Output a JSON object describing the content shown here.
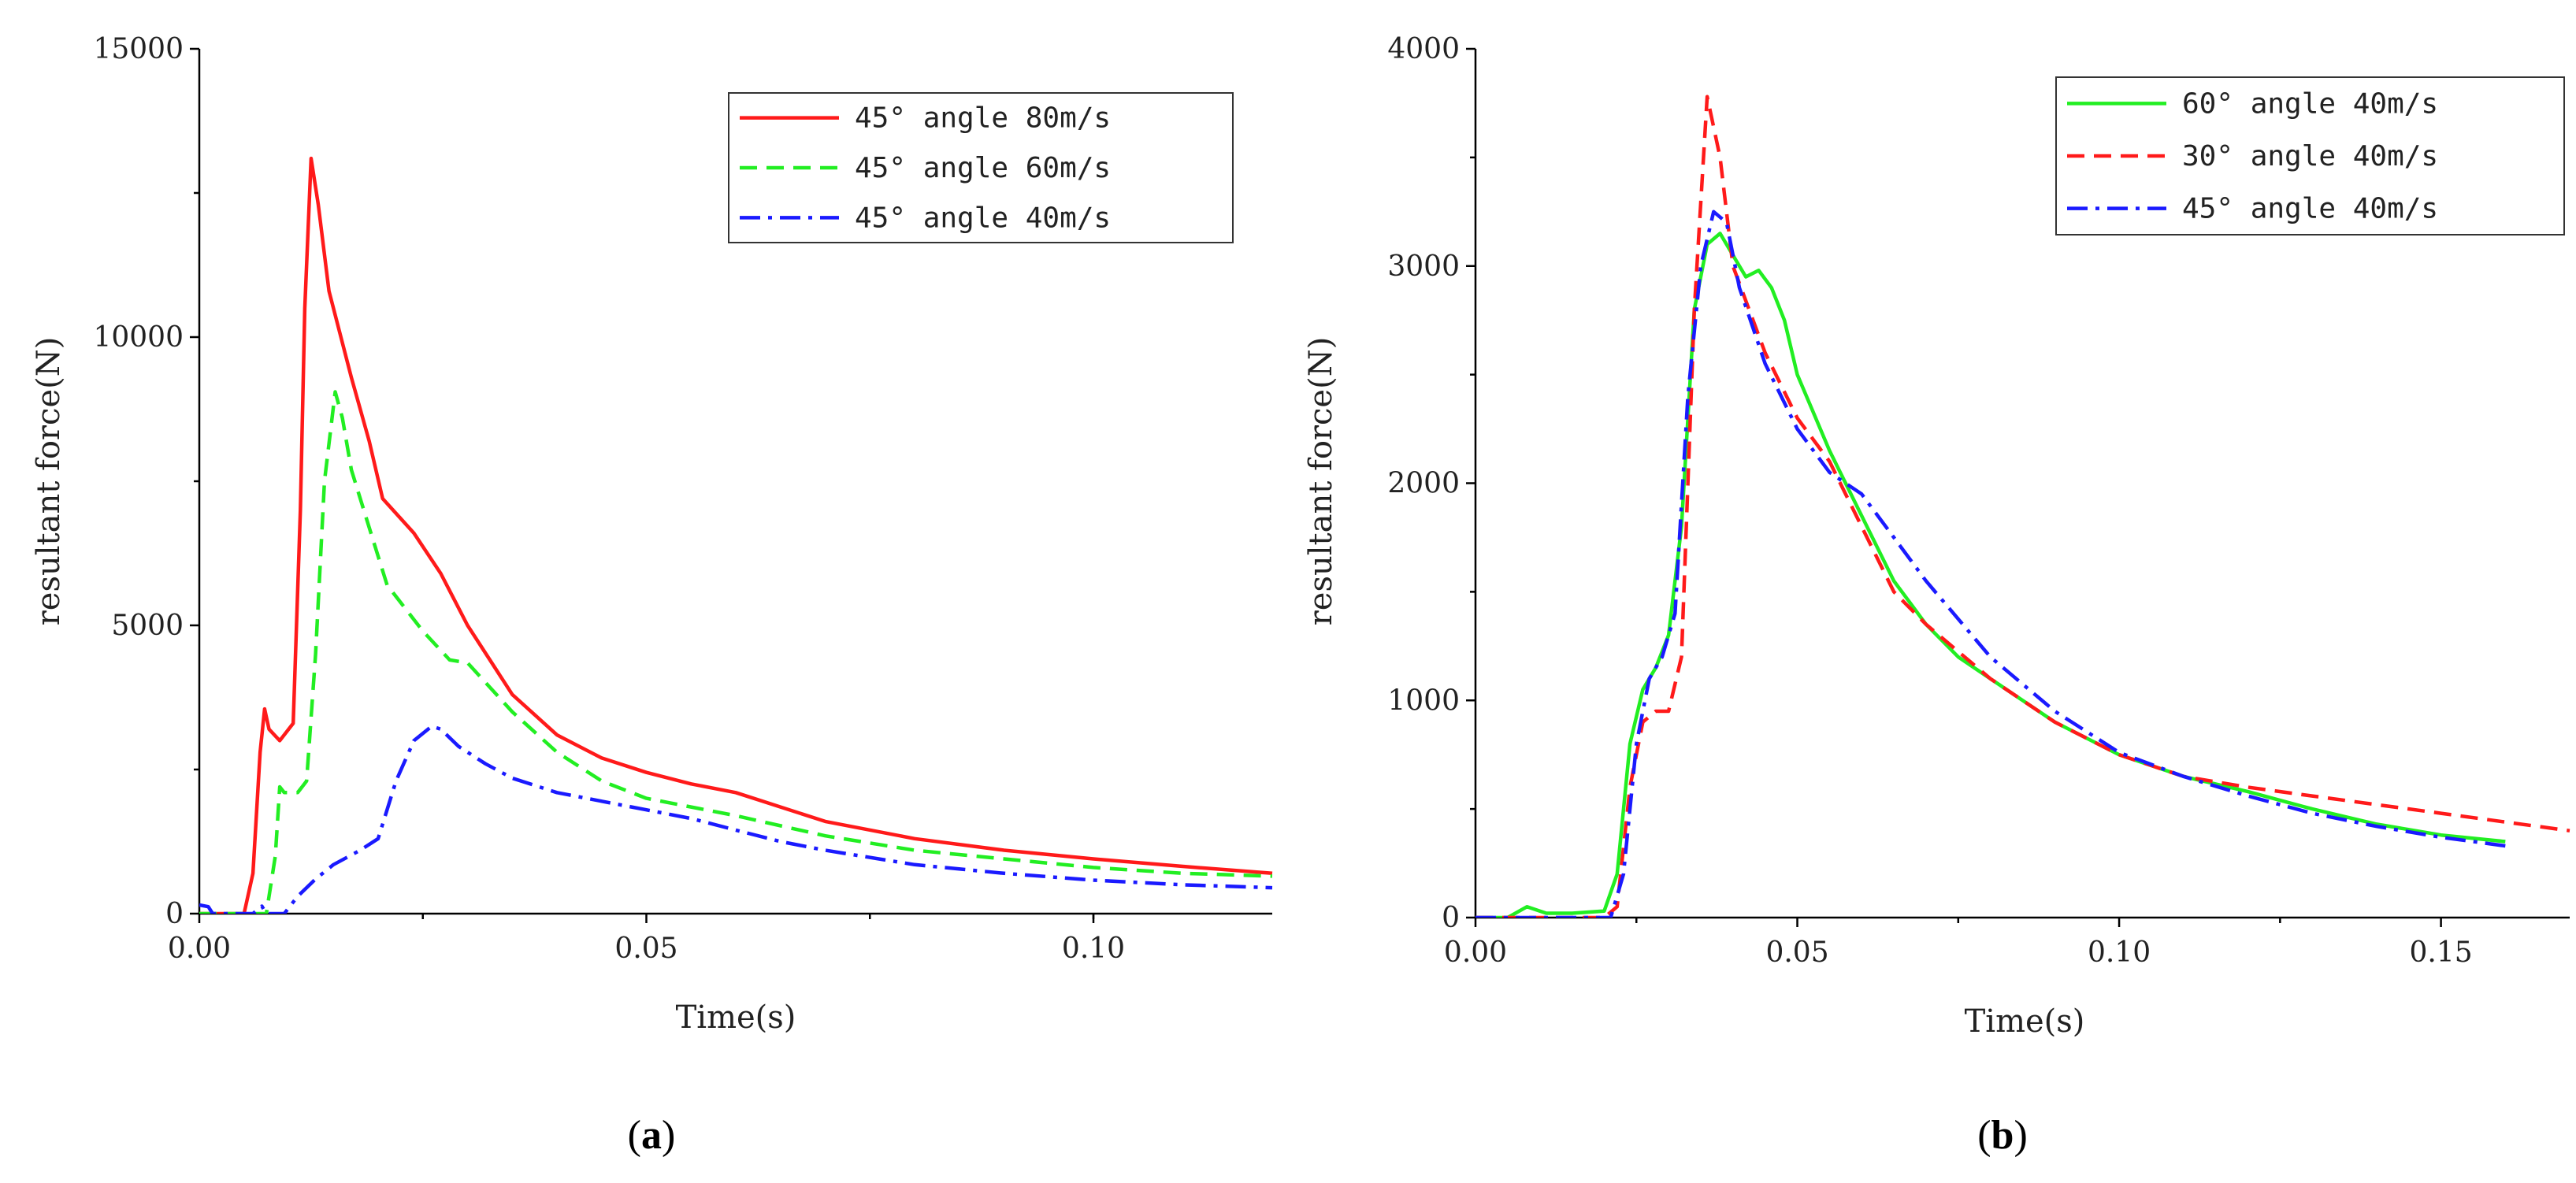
{
  "colors": {
    "red": "#ff1a1a",
    "green": "#22ee22",
    "blue": "#1a1aff"
  },
  "chart_data": [
    {
      "type": "line",
      "panel_label": {
        "open": "(",
        "letter": "a",
        "close": ")"
      },
      "xlabel": "Time(s)",
      "ylabel": "resultant force(N)",
      "xlim": [
        0,
        0.12
      ],
      "ylim": [
        0,
        15000
      ],
      "xticks": [
        0.0,
        0.05,
        0.1
      ],
      "xtick_labels": [
        "0.00",
        "0.05",
        "0.10"
      ],
      "xminor": [
        0.025,
        0.075,
        0.1
      ],
      "yticks": [
        0,
        5000,
        10000,
        15000
      ],
      "ytick_labels": [
        "0",
        "5000",
        "10000",
        "15000"
      ],
      "legend_position": "top-right",
      "series": [
        {
          "name": "45° angle 80m/s",
          "legend_label": "45°  angle 80m/s",
          "color": "#ff1a1a",
          "dash": "solid",
          "points": [
            [
              0,
              0
            ],
            [
              0.005,
              0
            ],
            [
              0.006,
              700
            ],
            [
              0.0068,
              2800
            ],
            [
              0.0073,
              3550
            ],
            [
              0.0078,
              3200
            ],
            [
              0.009,
              3000
            ],
            [
              0.0105,
              3300
            ],
            [
              0.0113,
              7000
            ],
            [
              0.0118,
              10500
            ],
            [
              0.0125,
              13100
            ],
            [
              0.0133,
              12300
            ],
            [
              0.0145,
              10800
            ],
            [
              0.017,
              9300
            ],
            [
              0.019,
              8200
            ],
            [
              0.0205,
              7200
            ],
            [
              0.024,
              6600
            ],
            [
              0.027,
              5900
            ],
            [
              0.03,
              5000
            ],
            [
              0.035,
              3800
            ],
            [
              0.04,
              3100
            ],
            [
              0.045,
              2700
            ],
            [
              0.05,
              2450
            ],
            [
              0.055,
              2250
            ],
            [
              0.06,
              2100
            ],
            [
              0.065,
              1850
            ],
            [
              0.07,
              1600
            ],
            [
              0.08,
              1300
            ],
            [
              0.09,
              1100
            ],
            [
              0.1,
              950
            ],
            [
              0.11,
              820
            ],
            [
              0.12,
              700
            ]
          ]
        },
        {
          "name": "45° angle 60m/s",
          "legend_label": "45°  angle 60m/s",
          "color": "#22ee22",
          "dash": "dashed",
          "points": [
            [
              0,
              0
            ],
            [
              0.0075,
              0
            ],
            [
              0.0085,
              1000
            ],
            [
              0.009,
              2200
            ],
            [
              0.0095,
              2100
            ],
            [
              0.011,
              2100
            ],
            [
              0.012,
              2300
            ],
            [
              0.013,
              4500
            ],
            [
              0.014,
              7500
            ],
            [
              0.0152,
              9050
            ],
            [
              0.016,
              8600
            ],
            [
              0.017,
              7700
            ],
            [
              0.019,
              6700
            ],
            [
              0.021,
              5700
            ],
            [
              0.025,
              4900
            ],
            [
              0.028,
              4400
            ],
            [
              0.03,
              4350
            ],
            [
              0.035,
              3500
            ],
            [
              0.04,
              2800
            ],
            [
              0.045,
              2300
            ],
            [
              0.05,
              2000
            ],
            [
              0.06,
              1700
            ],
            [
              0.07,
              1350
            ],
            [
              0.08,
              1100
            ],
            [
              0.09,
              950
            ],
            [
              0.1,
              800
            ],
            [
              0.11,
              700
            ],
            [
              0.12,
              650
            ]
          ]
        },
        {
          "name": "45° angle 40m/s",
          "legend_label": "45°  angle 40m/s",
          "color": "#1a1aff",
          "dash": "dashdot",
          "points": [
            [
              0,
              150
            ],
            [
              0.001,
              120
            ],
            [
              0.0015,
              0
            ],
            [
              0.006,
              0
            ],
            [
              0.007,
              130
            ],
            [
              0.0075,
              0
            ],
            [
              0.0095,
              0
            ],
            [
              0.011,
              300
            ],
            [
              0.013,
              600
            ],
            [
              0.015,
              850
            ],
            [
              0.018,
              1100
            ],
            [
              0.02,
              1300
            ],
            [
              0.022,
              2300
            ],
            [
              0.024,
              3000
            ],
            [
              0.026,
              3250
            ],
            [
              0.027,
              3200
            ],
            [
              0.029,
              2900
            ],
            [
              0.032,
              2600
            ],
            [
              0.035,
              2350
            ],
            [
              0.04,
              2100
            ],
            [
              0.045,
              1950
            ],
            [
              0.05,
              1800
            ],
            [
              0.055,
              1650
            ],
            [
              0.06,
              1450
            ],
            [
              0.065,
              1250
            ],
            [
              0.07,
              1100
            ],
            [
              0.08,
              850
            ],
            [
              0.09,
              700
            ],
            [
              0.1,
              580
            ],
            [
              0.11,
              500
            ],
            [
              0.12,
              450
            ]
          ]
        }
      ]
    },
    {
      "type": "line",
      "panel_label": {
        "open": "(",
        "letter": "b",
        "close": ")"
      },
      "xlabel": "Time(s)",
      "ylabel": "resultant force(N)",
      "xlim": [
        0,
        0.17
      ],
      "ylim": [
        0,
        4000
      ],
      "xticks": [
        0.0,
        0.05,
        0.1,
        0.15
      ],
      "xtick_labels": [
        "0.00",
        "0.05",
        "0.10",
        "0.15"
      ],
      "xminor": [
        0.025,
        0.075,
        0.125
      ],
      "yticks": [
        0,
        1000,
        2000,
        3000,
        4000
      ],
      "ytick_labels": [
        "0",
        "1000",
        "2000",
        "3000",
        "4000"
      ],
      "legend_position": "top-right",
      "series": [
        {
          "name": "60° angle 40m/s",
          "legend_label": "60°  angle 40m/s",
          "color": "#22ee22",
          "dash": "solid",
          "points": [
            [
              0,
              0
            ],
            [
              0.005,
              0
            ],
            [
              0.008,
              50
            ],
            [
              0.011,
              20
            ],
            [
              0.015,
              20
            ],
            [
              0.02,
              30
            ],
            [
              0.022,
              200
            ],
            [
              0.024,
              800
            ],
            [
              0.026,
              1050
            ],
            [
              0.028,
              1150
            ],
            [
              0.03,
              1300
            ],
            [
              0.032,
              1800
            ],
            [
              0.034,
              2800
            ],
            [
              0.036,
              3100
            ],
            [
              0.038,
              3150
            ],
            [
              0.04,
              3050
            ],
            [
              0.042,
              2950
            ],
            [
              0.044,
              2980
            ],
            [
              0.046,
              2900
            ],
            [
              0.048,
              2750
            ],
            [
              0.05,
              2500
            ],
            [
              0.055,
              2150
            ],
            [
              0.06,
              1850
            ],
            [
              0.065,
              1550
            ],
            [
              0.07,
              1350
            ],
            [
              0.075,
              1200
            ],
            [
              0.08,
              1100
            ],
            [
              0.09,
              900
            ],
            [
              0.1,
              750
            ],
            [
              0.11,
              650
            ],
            [
              0.12,
              580
            ],
            [
              0.13,
              500
            ],
            [
              0.14,
              430
            ],
            [
              0.15,
              380
            ],
            [
              0.16,
              350
            ]
          ]
        },
        {
          "name": "30° angle 40m/s",
          "legend_label": "30°  angle 40m/s",
          "color": "#ff1a1a",
          "dash": "dashed",
          "points": [
            [
              0,
              0
            ],
            [
              0.02,
              0
            ],
            [
              0.022,
              50
            ],
            [
              0.024,
              600
            ],
            [
              0.026,
              900
            ],
            [
              0.028,
              950
            ],
            [
              0.03,
              950
            ],
            [
              0.032,
              1200
            ],
            [
              0.034,
              2800
            ],
            [
              0.036,
              3780
            ],
            [
              0.038,
              3500
            ],
            [
              0.04,
              3000
            ],
            [
              0.045,
              2600
            ],
            [
              0.05,
              2300
            ],
            [
              0.055,
              2100
            ],
            [
              0.06,
              1800
            ],
            [
              0.065,
              1500
            ],
            [
              0.07,
              1350
            ],
            [
              0.08,
              1100
            ],
            [
              0.09,
              900
            ],
            [
              0.1,
              750
            ],
            [
              0.11,
              650
            ],
            [
              0.12,
              600
            ],
            [
              0.13,
              560
            ],
            [
              0.14,
              520
            ],
            [
              0.15,
              480
            ],
            [
              0.16,
              440
            ],
            [
              0.17,
              400
            ]
          ]
        },
        {
          "name": "45° angle 40m/s",
          "legend_label": "45°  angle 40m/s",
          "color": "#1a1aff",
          "dash": "dashdot",
          "points": [
            [
              0,
              0
            ],
            [
              0.021,
              0
            ],
            [
              0.023,
              200
            ],
            [
              0.025,
              800
            ],
            [
              0.027,
              1100
            ],
            [
              0.029,
              1200
            ],
            [
              0.031,
              1400
            ],
            [
              0.033,
              2400
            ],
            [
              0.035,
              3000
            ],
            [
              0.037,
              3250
            ],
            [
              0.039,
              3200
            ],
            [
              0.041,
              2900
            ],
            [
              0.045,
              2550
            ],
            [
              0.05,
              2250
            ],
            [
              0.055,
              2050
            ],
            [
              0.06,
              1950
            ],
            [
              0.065,
              1750
            ],
            [
              0.07,
              1550
            ],
            [
              0.08,
              1200
            ],
            [
              0.09,
              950
            ],
            [
              0.1,
              760
            ],
            [
              0.11,
              650
            ],
            [
              0.12,
              560
            ],
            [
              0.13,
              480
            ],
            [
              0.14,
              420
            ],
            [
              0.15,
              370
            ],
            [
              0.16,
              330
            ]
          ]
        }
      ]
    }
  ]
}
